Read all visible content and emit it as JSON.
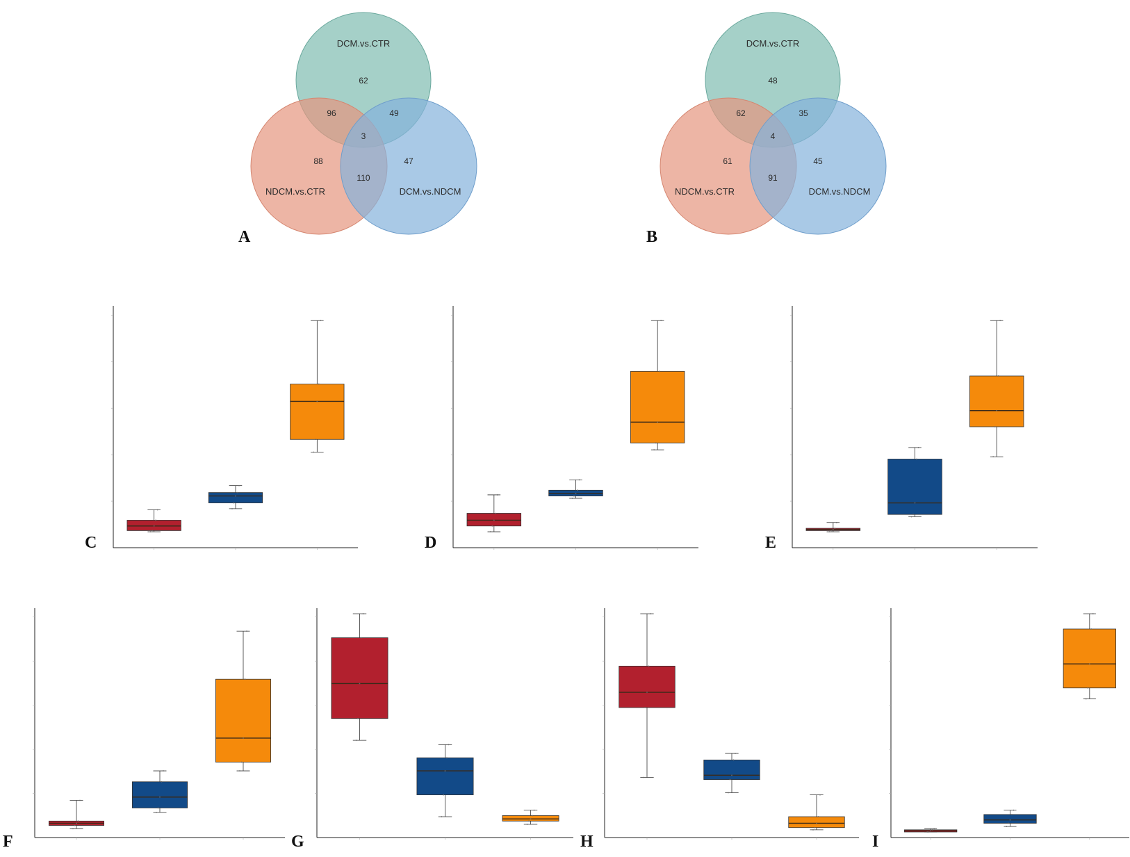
{
  "venns": [
    {
      "panel": "A",
      "sets": [
        "DCM.vs.CTR",
        "NDCM.vs.CTR",
        "DCM.vs.NDCM"
      ],
      "regions": {
        "top_only": "62",
        "top_left": "96",
        "top_right": "49",
        "center": "3",
        "left_only": "88",
        "left_right": "110",
        "right_only": "47"
      }
    },
    {
      "panel": "B",
      "sets": [
        "DCM.vs.CTR",
        "NDCM.vs.CTR",
        "DCM.vs.NDCM"
      ],
      "regions": {
        "top_only": "48",
        "top_left": "62",
        "top_right": "35",
        "center": "4",
        "left_only": "61",
        "left_right": "91",
        "right_only": "45"
      }
    }
  ],
  "colors": {
    "venn_top": "#7fbcb1",
    "venn_left": "#e5957f",
    "venn_right": "#85b2dc",
    "ctr": "#b2202e",
    "ndcm": "#124a88",
    "dcm": "#f58a0b"
  },
  "chart_data": [
    {
      "panel": "C",
      "type": "box",
      "ylim": [
        0,
        1
      ],
      "groups": [
        {
          "q1": 0.05,
          "median": 0.07,
          "q3": 0.095,
          "lo": 0.045,
          "hi": 0.14
        },
        {
          "q1": 0.17,
          "median": 0.2,
          "q3": 0.215,
          "lo": 0.145,
          "hi": 0.245
        },
        {
          "q1": 0.445,
          "median": 0.61,
          "q3": 0.685,
          "lo": 0.39,
          "hi": 0.96
        }
      ]
    },
    {
      "panel": "D",
      "type": "box",
      "ylim": [
        0,
        1
      ],
      "groups": [
        {
          "q1": 0.07,
          "median": 0.095,
          "q3": 0.125,
          "lo": 0.045,
          "hi": 0.205
        },
        {
          "q1": 0.2,
          "median": 0.21,
          "q3": 0.225,
          "lo": 0.19,
          "hi": 0.27
        },
        {
          "q1": 0.43,
          "median": 0.52,
          "q3": 0.74,
          "lo": 0.4,
          "hi": 0.96
        }
      ]
    },
    {
      "panel": "E",
      "type": "box",
      "ylim": [
        0,
        1
      ],
      "groups": [
        {
          "q1": 0.05,
          "median": 0.055,
          "q3": 0.06,
          "lo": 0.045,
          "hi": 0.085
        },
        {
          "q1": 0.12,
          "median": 0.17,
          "q3": 0.36,
          "lo": 0.11,
          "hi": 0.41
        },
        {
          "q1": 0.5,
          "median": 0.57,
          "q3": 0.72,
          "lo": 0.37,
          "hi": 0.96
        }
      ]
    },
    {
      "panel": "F",
      "type": "box",
      "ylim": [
        0,
        1
      ],
      "groups": [
        {
          "q1": 0.03,
          "median": 0.04,
          "q3": 0.05,
          "lo": 0.015,
          "hi": 0.145
        },
        {
          "q1": 0.11,
          "median": 0.16,
          "q3": 0.23,
          "lo": 0.09,
          "hi": 0.28
        },
        {
          "q1": 0.32,
          "median": 0.43,
          "q3": 0.7,
          "lo": 0.28,
          "hi": 0.92
        }
      ]
    },
    {
      "panel": "G",
      "type": "box",
      "ylim": [
        0,
        1
      ],
      "groups": [
        {
          "q1": 0.52,
          "median": 0.68,
          "q3": 0.89,
          "lo": 0.42,
          "hi": 1.0
        },
        {
          "q1": 0.17,
          "median": 0.28,
          "q3": 0.34,
          "lo": 0.07,
          "hi": 0.4
        },
        {
          "q1": 0.05,
          "median": 0.06,
          "q3": 0.075,
          "lo": 0.035,
          "hi": 0.1
        }
      ]
    },
    {
      "panel": "H",
      "type": "box",
      "ylim": [
        0,
        1
      ],
      "groups": [
        {
          "q1": 0.57,
          "median": 0.64,
          "q3": 0.76,
          "lo": 0.25,
          "hi": 1.0
        },
        {
          "q1": 0.24,
          "median": 0.26,
          "q3": 0.33,
          "lo": 0.18,
          "hi": 0.36
        },
        {
          "q1": 0.02,
          "median": 0.04,
          "q3": 0.07,
          "lo": 0.01,
          "hi": 0.17
        }
      ]
    },
    {
      "panel": "I",
      "type": "box",
      "ylim": [
        0,
        1
      ],
      "groups": [
        {
          "q1": 0.0,
          "median": 0.005,
          "q3": 0.01,
          "lo": 0.0,
          "hi": 0.015
        },
        {
          "q1": 0.04,
          "median": 0.055,
          "q3": 0.08,
          "lo": 0.025,
          "hi": 0.1
        },
        {
          "q1": 0.66,
          "median": 0.77,
          "q3": 0.93,
          "lo": 0.61,
          "hi": 1.0
        }
      ]
    }
  ]
}
